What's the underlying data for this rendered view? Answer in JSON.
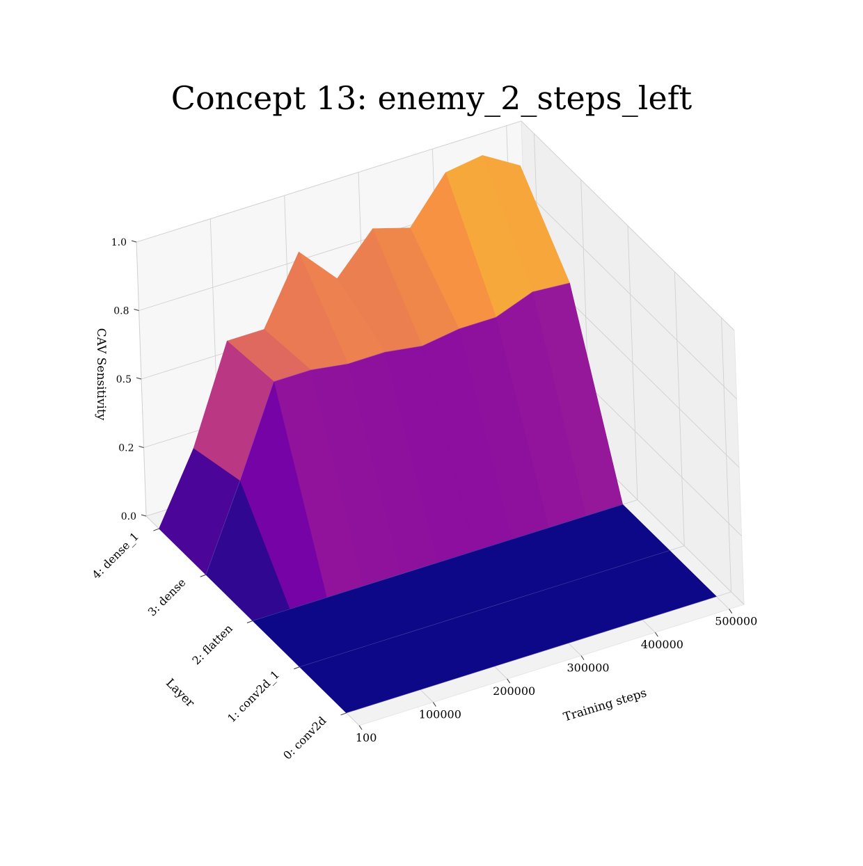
{
  "chart_data": {
    "type": "surface3d",
    "title": "Concept 13: enemy_2_steps_left",
    "xlabel": "Training steps",
    "ylabel": "Layer",
    "zlabel": "CAV Sensitivity",
    "x_ticks": [
      "100",
      "100000",
      "200000",
      "300000",
      "400000",
      "500000"
    ],
    "y_ticks": [
      "0: conv2d",
      "1: conv2d_1",
      "2: flatten",
      "3: dense",
      "4: dense_1"
    ],
    "z_ticks": [
      "0.0",
      "0.2",
      "0.5",
      "0.8",
      "1.0"
    ],
    "zlim": [
      0,
      1
    ],
    "colormap": "plasma",
    "x": [
      100,
      50000,
      100000,
      150000,
      200000,
      250000,
      300000,
      350000,
      400000,
      450000,
      500000
    ],
    "layers": [
      "0: conv2d",
      "1: conv2d_1",
      "2: flatten",
      "3: dense",
      "4: dense_1"
    ],
    "z": [
      [
        0.0,
        0.0,
        0.0,
        0.0,
        0.0,
        0.0,
        0.0,
        0.0,
        0.0,
        0.0,
        0.0
      ],
      [
        0.0,
        0.0,
        0.0,
        0.0,
        0.0,
        0.0,
        0.0,
        0.0,
        0.0,
        0.0,
        0.0
      ],
      [
        0.0,
        0.0,
        0.0,
        0.0,
        0.0,
        0.0,
        0.0,
        0.0,
        0.0,
        0.0,
        0.0
      ],
      [
        0.0,
        0.3,
        0.62,
        0.62,
        0.6,
        0.6,
        0.58,
        0.6,
        0.6,
        0.65,
        0.64
      ],
      [
        0.0,
        0.25,
        0.6,
        0.6,
        0.84,
        0.7,
        0.84,
        0.8,
        0.96,
        0.98,
        0.9
      ]
    ]
  }
}
